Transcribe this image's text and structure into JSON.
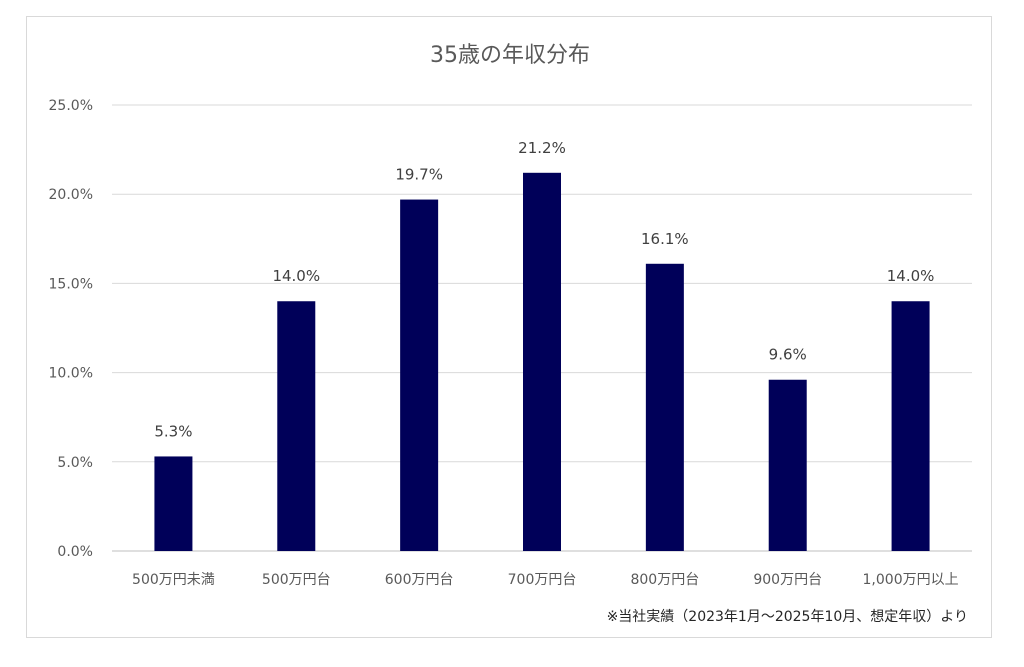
{
  "chart_data": {
    "type": "bar",
    "title": "35歳の年収分布",
    "categories": [
      "500万円未満",
      "500万円台",
      "600万円台",
      "700万円台",
      "800万円台",
      "900万円台",
      "1,000万円以上"
    ],
    "values": [
      5.3,
      14.0,
      19.7,
      21.2,
      16.1,
      9.6,
      14.0
    ],
    "data_labels": [
      "5.3%",
      "14.0%",
      "19.7%",
      "21.2%",
      "16.1%",
      "9.6%",
      "14.0%"
    ],
    "y_ticks": [
      "0.0%",
      "5.0%",
      "10.0%",
      "15.0%",
      "20.0%",
      "25.0%"
    ],
    "ylim": [
      0,
      25
    ],
    "grid": true,
    "bar_color": "#000059",
    "legend": "none",
    "footnote": "※当社実績（2023年1月～2025年10月、想定年収）より"
  }
}
